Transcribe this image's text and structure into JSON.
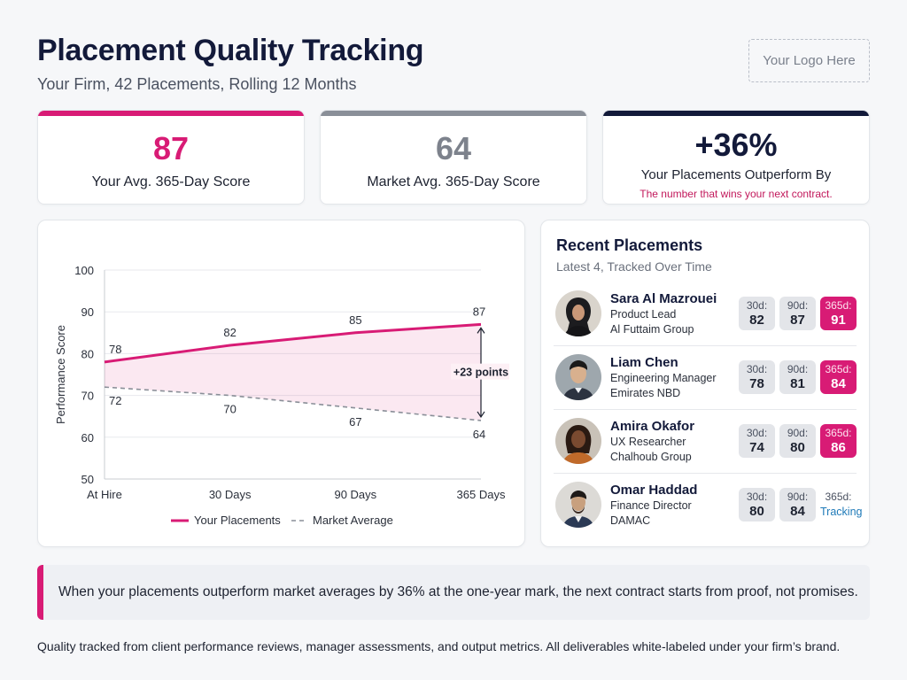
{
  "header": {
    "title": "Placement Quality Tracking",
    "subtitle": "Your Firm, 42 Placements, Rolling 12 Months",
    "logo_text": "Your Logo Here"
  },
  "kpis": [
    {
      "value": "87",
      "label": "Your Avg. 365-Day Score",
      "color": "#d81b75"
    },
    {
      "value": "64",
      "label": "Market Avg. 365-Day Score",
      "color": "#8a8f98"
    },
    {
      "value": "+36%",
      "label": "Your Placements Outperform By",
      "note": "The number that wins your next contract.",
      "color": "#131a3a"
    }
  ],
  "chart_data": {
    "type": "line",
    "categories": [
      "At Hire",
      "30 Days",
      "90 Days",
      "365 Days"
    ],
    "series": [
      {
        "name": "Your Placements",
        "values": [
          78,
          82,
          85,
          87
        ],
        "color": "#d81b75",
        "style": "solid"
      },
      {
        "name": "Market Average",
        "values": [
          72,
          70,
          67,
          64
        ],
        "color": "#8a8f98",
        "style": "dashed"
      }
    ],
    "ylabel": "Performance Score",
    "ylim": [
      50,
      100
    ],
    "yticks": [
      50,
      60,
      70,
      80,
      90,
      100
    ],
    "grid": true,
    "legend_position": "bottom",
    "annotation": "+23 points"
  },
  "recent": {
    "title": "Recent Placements",
    "subtitle": "Latest 4, Tracked Over Time",
    "people": [
      {
        "name": "Sara Al Mazrouei",
        "role": "Product Lead",
        "company": "Al Futtaim Group",
        "d30": "82",
        "d90": "87",
        "d365": "91",
        "d365_state": "score"
      },
      {
        "name": "Liam Chen",
        "role": "Engineering Manager",
        "company": "Emirates NBD",
        "d30": "78",
        "d90": "81",
        "d365": "84",
        "d365_state": "score"
      },
      {
        "name": "Amira Okafor",
        "role": "UX Researcher",
        "company": "Chalhoub Group",
        "d30": "74",
        "d90": "80",
        "d365": "86",
        "d365_state": "score"
      },
      {
        "name": "Omar Haddad",
        "role": "Finance Director",
        "company": "DAMAC",
        "d30": "80",
        "d90": "84",
        "d365": "Tracking",
        "d365_state": "tracking"
      }
    ],
    "pill_labels": {
      "d30": "30d:",
      "d90": "90d:",
      "d365": "365d:"
    }
  },
  "callout": "When your placements outperform market averages by 36% at the one-year mark, the next contract starts from proof, not promises.",
  "footer": "Quality tracked from client performance reviews, manager assessments, and output metrics. All deliverables white-labeled under your firm’s brand."
}
